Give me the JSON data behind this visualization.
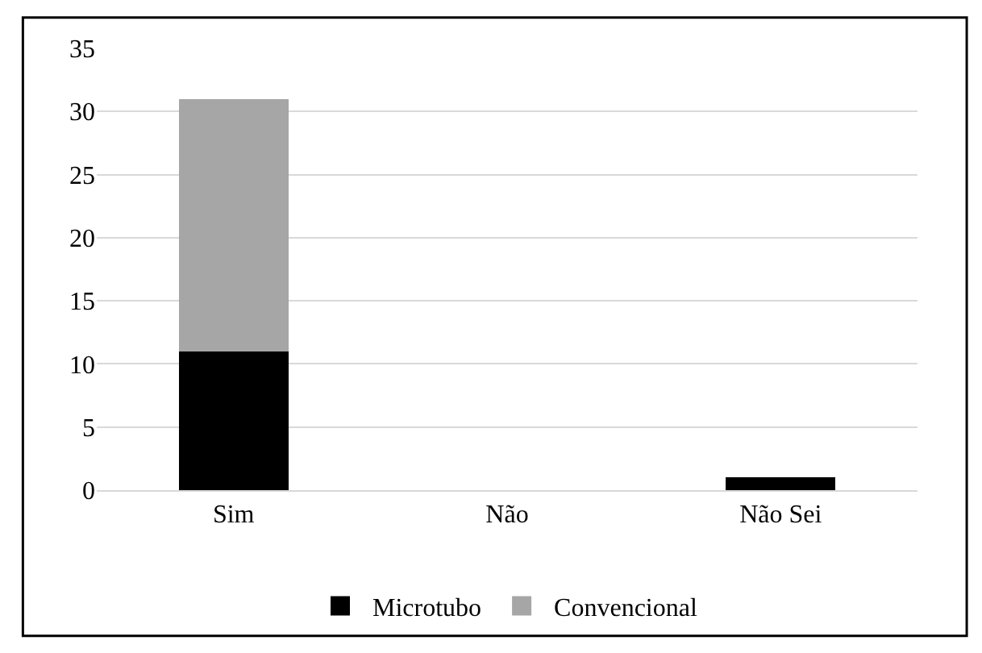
{
  "chart_data": {
    "type": "bar",
    "stacked": true,
    "categories": [
      "Sim",
      "Não",
      "Não Sei"
    ],
    "series": [
      {
        "name": "Microtubo",
        "color": "#000000",
        "values": [
          11,
          0,
          1
        ]
      },
      {
        "name": "Convencional",
        "color": "#a6a6a6",
        "values": [
          20,
          0,
          0
        ]
      }
    ],
    "ylim": [
      0,
      35
    ],
    "yticks": [
      0,
      5,
      10,
      15,
      20,
      25,
      30,
      35
    ],
    "grid": "y",
    "legend": "bottom"
  }
}
